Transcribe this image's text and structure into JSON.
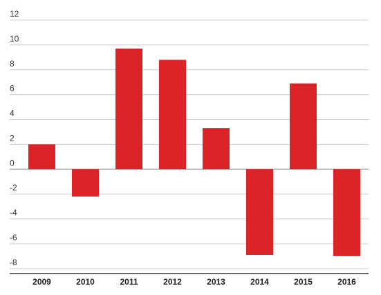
{
  "chart_data": {
    "type": "bar",
    "categories": [
      "2009",
      "2010",
      "2011",
      "2012",
      "2013",
      "2014",
      "2015",
      "2016"
    ],
    "values": [
      2.0,
      -2.2,
      9.7,
      8.8,
      3.3,
      -6.9,
      6.9,
      -7.0
    ],
    "color": "#dc2328",
    "ylim": [
      -8.4,
      12
    ],
    "yticks": [
      -8,
      -6,
      -4,
      -2,
      0,
      2,
      4,
      6,
      8,
      10,
      12
    ],
    "grid": true
  }
}
